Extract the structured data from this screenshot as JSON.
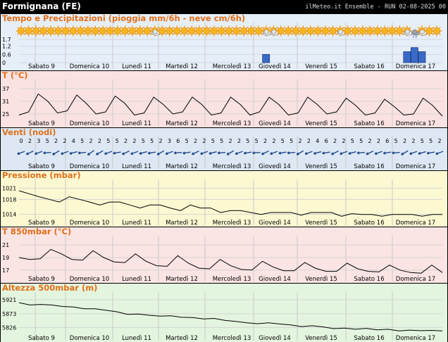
{
  "header": {
    "location": "Formignana (FE)",
    "run_info": "ilMeteo.it Ensemble - RUN 02-08-2025 00"
  },
  "days": [
    "Sabato 9",
    "Domenica 10",
    "Lunedì 11",
    "Martedì 12",
    "Mercoledì 13",
    "Giovedì 14",
    "Venerdì 15",
    "Sabato 16",
    "Domenica 17"
  ],
  "colors": {
    "line": "#000000",
    "bar": "#3a6ac8",
    "panel_precip": "#e6eef8",
    "panel_temp": "#fbe2e2",
    "panel_wind": "#dde8f4",
    "panel_pressure": "#fbf8d2",
    "panel_t850": "#fbe4e4",
    "panel_z500": "#e3f5de"
  },
  "chart_data": [
    {
      "type": "bar",
      "title": "Tempo e Precipitazioni (pioggia mm/6h - neve cm/6h)",
      "yticks": [
        "1.7",
        "1.2",
        "0.6",
        "0"
      ],
      "ylim": [
        0,
        1.7
      ],
      "weather_icons": [
        "sun",
        "sun",
        "sun",
        "sun",
        "sun",
        "sun",
        "sun",
        "sun",
        "sun",
        "sun",
        "sun",
        "sun",
        "sun",
        "sun",
        "sun",
        "sun",
        "sun",
        "sun",
        "partly-cloudy",
        "sun",
        "sun",
        "sun",
        "sun",
        "sun",
        "sun",
        "sun",
        "sun",
        "sun",
        "sun",
        "sun",
        "sun",
        "sun",
        "sun",
        "partly-cloudy",
        "partly-cloudy",
        "sun",
        "sun",
        "sun",
        "sun",
        "sun",
        "sun",
        "sun",
        "sun",
        "partly-cloudy",
        "sun",
        "sun",
        "sun",
        "sun",
        "sun",
        "sun",
        "sun",
        "sun",
        "partly-cloudy",
        "rain-cloud",
        "partly-cloudy",
        "sun",
        "sun"
      ],
      "values": [
        0,
        0,
        0,
        0,
        0,
        0,
        0,
        0,
        0,
        0,
        0,
        0,
        0,
        0,
        0,
        0,
        0,
        0,
        0,
        0,
        0,
        0,
        0,
        0,
        0,
        0,
        0,
        0,
        0,
        0,
        0,
        0,
        0,
        0.6,
        0,
        0,
        0,
        0,
        0,
        0,
        0,
        0,
        0,
        0,
        0,
        0,
        0,
        0,
        0,
        0,
        0,
        0,
        0.8,
        1.1,
        0.8,
        0,
        0
      ]
    },
    {
      "type": "line",
      "title": "T (°C)",
      "yticks": [
        "37",
        "31",
        "25"
      ],
      "ylim": [
        23,
        39
      ],
      "values": [
        24.5,
        26,
        34.5,
        31,
        25.5,
        26.5,
        34,
        30,
        25,
        26,
        33.5,
        30,
        24.5,
        25.5,
        33,
        29.5,
        25,
        26,
        33,
        29.5,
        24.5,
        25.5,
        33,
        29.5,
        24.5,
        26,
        33,
        29.5,
        24.5,
        25.5,
        33,
        29.5,
        25,
        26,
        32.5,
        29,
        24.5,
        25.5,
        32,
        28.5,
        24.5,
        25,
        32.5,
        29,
        24
      ]
    },
    {
      "type": "table",
      "title": "Venti (nodi)",
      "speeds": [
        "0",
        "2",
        "3",
        "5",
        "2",
        "2",
        "4",
        "5",
        "2",
        "2",
        "5",
        "5",
        "2",
        "2",
        "5",
        "5",
        "2",
        "3",
        "6",
        "5",
        "2",
        "2",
        "5",
        "5",
        "2",
        "2",
        "5",
        "5",
        "2",
        "2",
        "5",
        "5",
        "2",
        "2",
        "4",
        "6",
        "2",
        "2",
        "5",
        "5",
        "2",
        "2",
        "6",
        "5",
        "2",
        "2",
        "5",
        "5",
        "2"
      ],
      "directions_deg": [
        250,
        245,
        250,
        265,
        240,
        250,
        255,
        265,
        235,
        240,
        250,
        260,
        245,
        250,
        255,
        260,
        240,
        250,
        265,
        260,
        245,
        250,
        255,
        265,
        240,
        250,
        260,
        265,
        245,
        250,
        260,
        265,
        240,
        250,
        255,
        260,
        245,
        250,
        255,
        265,
        245,
        250,
        260,
        265,
        240,
        250,
        255,
        260,
        250
      ]
    },
    {
      "type": "line",
      "title": "Pressione (mbar)",
      "yticks": [
        "1021",
        "1018",
        "1014"
      ],
      "ylim": [
        1013,
        1022
      ],
      "values": [
        1020.3,
        1019.5,
        1018.7,
        1018,
        1017.3,
        1018.7,
        1018,
        1017.3,
        1016.5,
        1017.3,
        1017.3,
        1016.5,
        1015.7,
        1016.5,
        1016.5,
        1015.7,
        1015,
        1016.5,
        1015.7,
        1015.7,
        1014.5,
        1015,
        1015,
        1014.5,
        1014,
        1014.5,
        1014.5,
        1014.5,
        1013.8,
        1014.5,
        1014.5,
        1014.5,
        1013.5,
        1014.2,
        1014,
        1014,
        1013.5,
        1014,
        1014,
        1014,
        1013.5,
        1014,
        1014
      ]
    },
    {
      "type": "line",
      "title": "T 850mbar (°C)",
      "yticks": [
        "21",
        "19",
        "17"
      ],
      "ylim": [
        16.3,
        21.7
      ],
      "values": [
        19,
        18.7,
        18.8,
        20.3,
        19.6,
        18.7,
        18.6,
        20.1,
        19,
        18.3,
        18.2,
        19.6,
        18.4,
        17.7,
        17.6,
        19.3,
        18.1,
        17.3,
        17.2,
        18.7,
        17.7,
        17.1,
        17,
        18.4,
        17.5,
        16.9,
        16.9,
        18.2,
        17.3,
        16.8,
        16.8,
        18.1,
        17.2,
        16.8,
        16.7,
        17.8,
        17.0,
        16.6,
        16.5,
        17.8,
        16.6
      ]
    },
    {
      "type": "line",
      "title": "Altezza 500mbar (m)",
      "yticks": [
        "5921",
        "5873",
        "5826"
      ],
      "ylim": [
        5810,
        5933
      ],
      "values": [
        5911,
        5903,
        5905,
        5903,
        5898,
        5896,
        5890,
        5890,
        5885,
        5880,
        5871,
        5872,
        5868,
        5865,
        5866,
        5861,
        5860,
        5855,
        5857,
        5850,
        5847,
        5842,
        5839,
        5842,
        5838,
        5835,
        5829,
        5832,
        5828,
        5822,
        5824,
        5820,
        5823,
        5818,
        5820,
        5814,
        5817,
        5815,
        5816,
        5814
      ]
    }
  ]
}
